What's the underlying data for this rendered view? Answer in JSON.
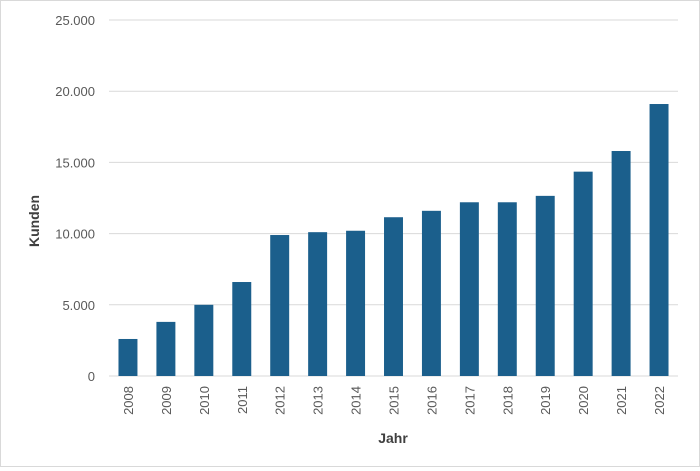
{
  "chart_data": {
    "type": "bar",
    "categories": [
      "2008",
      "2009",
      "2010",
      "2011",
      "2012",
      "2013",
      "2014",
      "2015",
      "2016",
      "2017",
      "2018",
      "2019",
      "2020",
      "2021",
      "2022"
    ],
    "values": [
      2600,
      3800,
      5000,
      6600,
      9900,
      10100,
      10200,
      11150,
      11600,
      12200,
      12200,
      12650,
      14350,
      15800,
      19100
    ],
    "ylim": [
      0,
      25000
    ],
    "yticks": [
      0,
      5000,
      10000,
      15000,
      20000,
      25000
    ],
    "ytick_labels": [
      "0",
      "5.000",
      "10.000",
      "15.000",
      "20.000",
      "25.000"
    ],
    "xlabel": "Jahr",
    "ylabel": "Kunden",
    "grid": true,
    "bar_color": "#1b5f8c"
  }
}
